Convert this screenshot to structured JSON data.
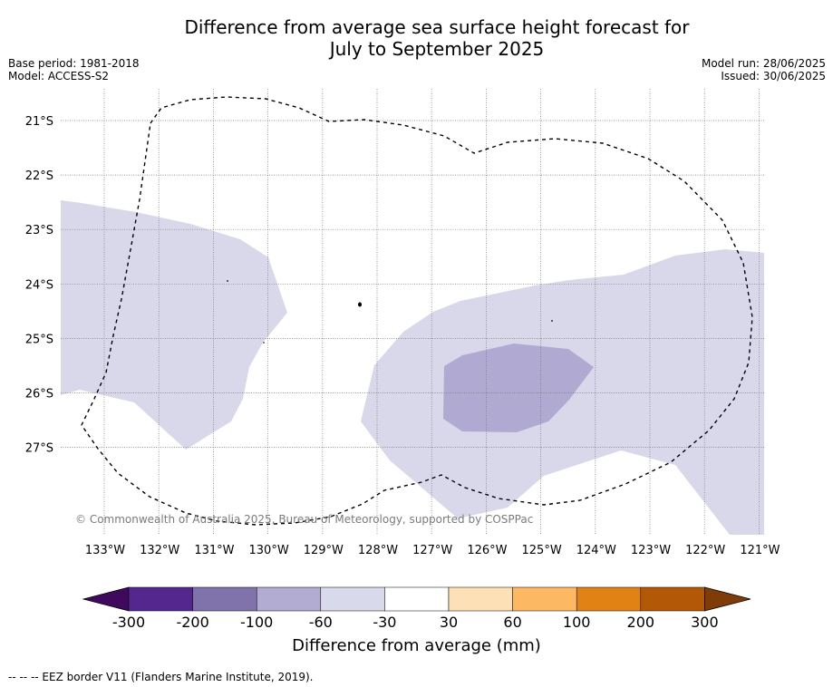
{
  "title_line1": "Difference from average sea surface height forecast for",
  "title_line2": "July to September 2025",
  "meta": {
    "base_period": "Base period: 1981-2018",
    "model": "Model: ACCESS-S2",
    "model_run": "Model run: 28/06/2025",
    "issued": "Issued: 30/06/2025"
  },
  "map": {
    "lat_labels": [
      "21°S",
      "22°S",
      "23°S",
      "24°S",
      "25°S",
      "26°S",
      "27°S"
    ],
    "lon_labels": [
      "133°W",
      "132°W",
      "131°W",
      "130°W",
      "129°W",
      "128°W",
      "127°W",
      "126°W",
      "125°W",
      "124°W",
      "123°W",
      "122°W",
      "121°W"
    ],
    "copyright": "© Commonwealth of Australia 2025, Bureau of Meteorology, supported by COSPPac",
    "colors": {
      "light_purple": "#d8d8ea",
      "mid_purple": "#b0aad2",
      "eez_line": "#000000"
    }
  },
  "colorbar": {
    "ticks": [
      "-300",
      "-200",
      "-100",
      "-60",
      "-30",
      "30",
      "60",
      "100",
      "200",
      "300"
    ],
    "colors": [
      "#3f0a5e",
      "#54278f",
      "#8073ac",
      "#b2abd2",
      "#d8daeb",
      "#ffffff",
      "#fee0b6",
      "#fdb863",
      "#e08214",
      "#b35806",
      "#7f3b08"
    ],
    "label": "Difference from average (mm)"
  },
  "footnote": "--  --  -- EEZ border V11 (Flanders Marine Institute, 2019)."
}
